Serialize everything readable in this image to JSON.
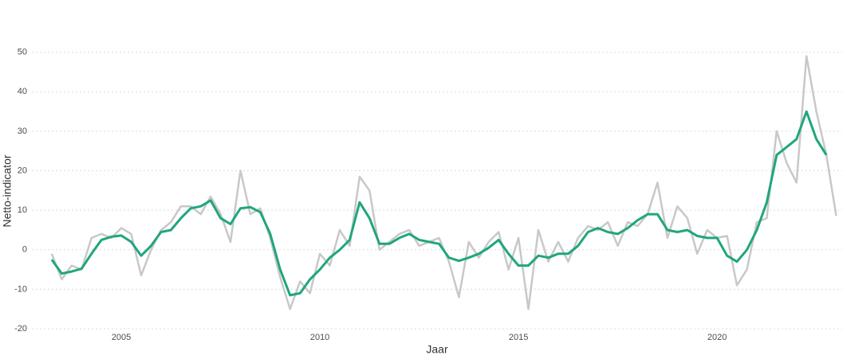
{
  "chart_data": {
    "type": "line",
    "x_label": "Jaar",
    "y_label": "Netto-indicator",
    "x": [
      2003.25,
      2003.5,
      2003.75,
      2004,
      2004.25,
      2004.5,
      2004.75,
      2005,
      2005.25,
      2005.5,
      2005.75,
      2006,
      2006.25,
      2006.5,
      2006.75,
      2007,
      2007.25,
      2007.5,
      2007.75,
      2008,
      2008.25,
      2008.5,
      2008.75,
      2009,
      2009.25,
      2009.5,
      2009.75,
      2010,
      2010.25,
      2010.5,
      2010.75,
      2011,
      2011.25,
      2011.5,
      2011.75,
      2012,
      2012.25,
      2012.5,
      2012.75,
      2013,
      2013.25,
      2013.5,
      2013.75,
      2014,
      2014.25,
      2014.5,
      2014.75,
      2015,
      2015.25,
      2015.5,
      2015.75,
      2016,
      2016.25,
      2016.5,
      2016.75,
      2017,
      2017.25,
      2017.5,
      2017.75,
      2018,
      2018.25,
      2018.5,
      2018.75,
      2019,
      2019.25,
      2019.5,
      2019.75,
      2020,
      2020.25,
      2020.5,
      2020.75,
      2021,
      2021.25,
      2021.5,
      2021.75,
      2022,
      2022.25,
      2022.5,
      2022.75,
      2023
    ],
    "series": [
      {
        "color": "#c8c8c8",
        "width": 2.5,
        "values": [
          -1,
          -7.5,
          -4,
          -5,
          3,
          4,
          3,
          5.5,
          4,
          -6.5,
          0,
          5,
          7,
          11,
          11,
          9,
          13.5,
          9,
          2,
          20,
          9,
          10.5,
          3,
          -7,
          -15,
          -8,
          -11,
          -1,
          -4,
          5,
          1,
          18.5,
          15,
          0,
          2,
          4,
          5,
          1,
          2,
          3,
          -3,
          -12,
          2,
          -2,
          2,
          4.5,
          -5,
          3,
          -15,
          5,
          -3,
          2,
          -3,
          3,
          6,
          5,
          7,
          1,
          7,
          6,
          9,
          17,
          3,
          11,
          8,
          -1,
          5,
          3,
          3.5,
          -9,
          -5,
          7,
          8,
          30,
          22,
          17,
          49,
          35,
          24,
          8.6
        ]
      },
      {
        "color": "#1fa67f",
        "width": 3,
        "values": [
          -2.5,
          -6,
          -5.5,
          -4.8,
          -1,
          2.5,
          3.3,
          3.6,
          2,
          -1.5,
          1,
          4.5,
          5,
          8,
          10.5,
          11,
          12.5,
          8,
          6.5,
          10.5,
          10.8,
          9.5,
          4,
          -5,
          -11.5,
          -11,
          -7.5,
          -5,
          -2,
          0,
          2.5,
          12,
          8,
          1.5,
          1.5,
          3,
          4,
          2.5,
          2,
          1.5,
          -2,
          -2.8,
          -2,
          -1,
          0.5,
          2.5,
          -1,
          -4,
          -4,
          -1.5,
          -2,
          -1,
          -1,
          1,
          4.5,
          5.5,
          4.5,
          4,
          5.5,
          7.5,
          9,
          9,
          5,
          4.5,
          5,
          3.5,
          3,
          3,
          -1.5,
          -3,
          0,
          5,
          12,
          24,
          26,
          28,
          35,
          28,
          24,
          null
        ]
      }
    ],
    "xlim": [
      2002.75,
      2023.15
    ],
    "xticks": [
      2005,
      2010,
      2015,
      2020
    ],
    "ylim": [
      -21,
      59
    ],
    "yticks": [
      -20,
      -10,
      0,
      10,
      20,
      30,
      40,
      50
    ],
    "grid": true
  }
}
